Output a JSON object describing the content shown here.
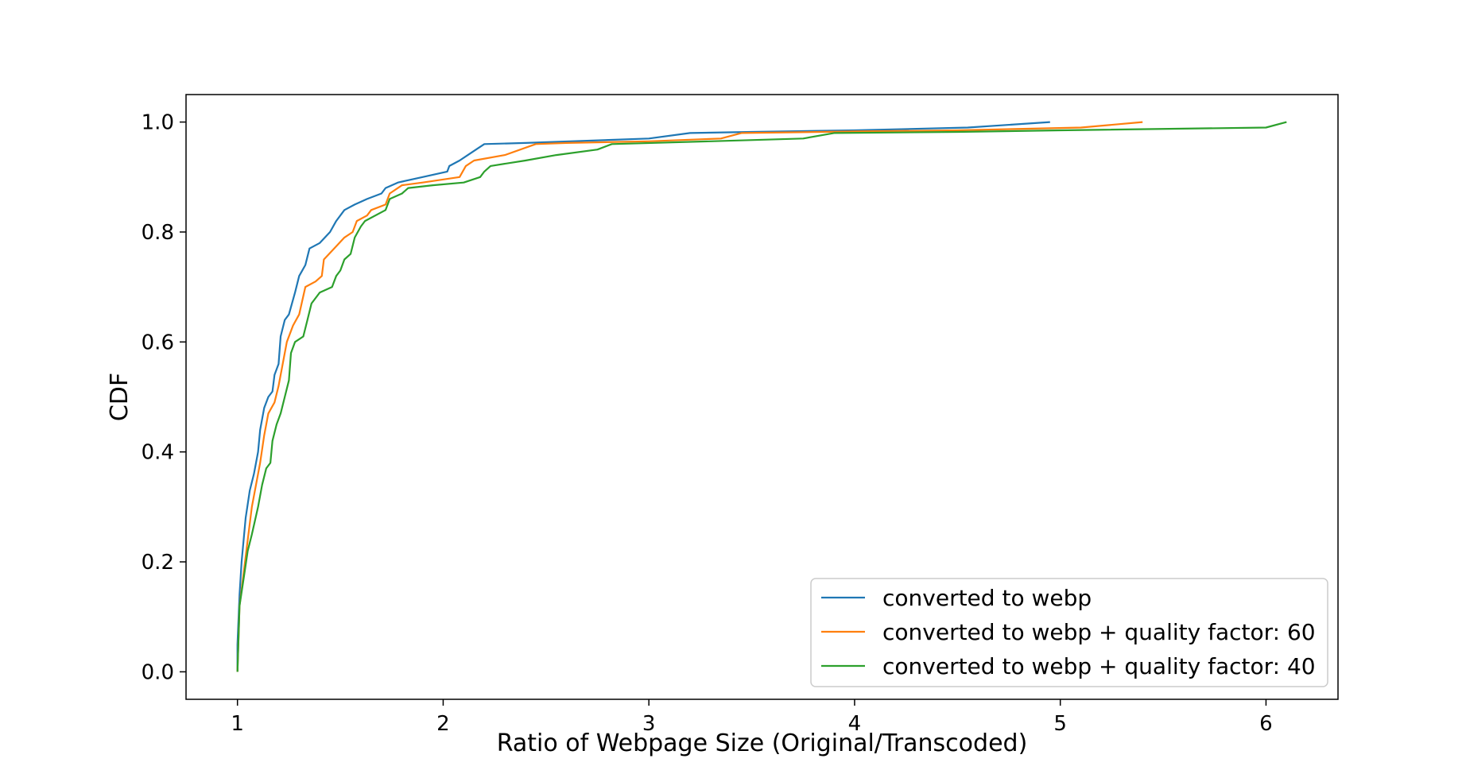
{
  "chart_data": {
    "type": "line",
    "title": "",
    "xlabel": "Ratio of Webpage Size (Original/Transcoded)",
    "ylabel": "CDF",
    "xlim": [
      0.75,
      6.35
    ],
    "ylim": [
      -0.05,
      1.05
    ],
    "x_ticks": [
      1,
      2,
      3,
      4,
      5,
      6
    ],
    "y_ticks": [
      0.0,
      0.2,
      0.4,
      0.6,
      0.8,
      1.0
    ],
    "x_tick_labels": [
      "1",
      "2",
      "3",
      "4",
      "5",
      "6"
    ],
    "y_tick_labels": [
      "0.0",
      "0.2",
      "0.4",
      "0.6",
      "0.8",
      "1.0"
    ],
    "grid": false,
    "legend_position": "bottom-right",
    "series": [
      {
        "name": "converted to webp",
        "color": "#1f77b4",
        "points": [
          [
            1.0,
            0.0
          ],
          [
            1.0,
            0.05
          ],
          [
            1.01,
            0.14
          ],
          [
            1.02,
            0.2
          ],
          [
            1.04,
            0.28
          ],
          [
            1.06,
            0.33
          ],
          [
            1.08,
            0.36
          ],
          [
            1.1,
            0.4
          ],
          [
            1.11,
            0.44
          ],
          [
            1.13,
            0.48
          ],
          [
            1.15,
            0.5
          ],
          [
            1.17,
            0.51
          ],
          [
            1.18,
            0.54
          ],
          [
            1.2,
            0.56
          ],
          [
            1.21,
            0.61
          ],
          [
            1.23,
            0.64
          ],
          [
            1.25,
            0.65
          ],
          [
            1.28,
            0.69
          ],
          [
            1.3,
            0.72
          ],
          [
            1.33,
            0.74
          ],
          [
            1.35,
            0.77
          ],
          [
            1.4,
            0.78
          ],
          [
            1.45,
            0.8
          ],
          [
            1.48,
            0.82
          ],
          [
            1.52,
            0.84
          ],
          [
            1.57,
            0.85
          ],
          [
            1.63,
            0.86
          ],
          [
            1.7,
            0.87
          ],
          [
            1.72,
            0.88
          ],
          [
            1.78,
            0.89
          ],
          [
            1.9,
            0.9
          ],
          [
            2.02,
            0.91
          ],
          [
            2.03,
            0.92
          ],
          [
            2.08,
            0.93
          ],
          [
            2.12,
            0.94
          ],
          [
            2.16,
            0.95
          ],
          [
            2.2,
            0.96
          ],
          [
            2.4,
            0.962
          ],
          [
            3.0,
            0.97
          ],
          [
            3.2,
            0.98
          ],
          [
            3.5,
            0.982
          ],
          [
            4.0,
            0.985
          ],
          [
            4.55,
            0.99
          ],
          [
            4.95,
            1.0
          ]
        ]
      },
      {
        "name": "converted to webp + quality factor: 60",
        "color": "#ff7f0e",
        "points": [
          [
            1.0,
            0.0
          ],
          [
            1.01,
            0.12
          ],
          [
            1.03,
            0.18
          ],
          [
            1.05,
            0.24
          ],
          [
            1.07,
            0.3
          ],
          [
            1.09,
            0.34
          ],
          [
            1.11,
            0.38
          ],
          [
            1.13,
            0.43
          ],
          [
            1.15,
            0.47
          ],
          [
            1.18,
            0.49
          ],
          [
            1.2,
            0.52
          ],
          [
            1.22,
            0.56
          ],
          [
            1.24,
            0.6
          ],
          [
            1.27,
            0.63
          ],
          [
            1.3,
            0.65
          ],
          [
            1.33,
            0.7
          ],
          [
            1.38,
            0.71
          ],
          [
            1.41,
            0.72
          ],
          [
            1.42,
            0.75
          ],
          [
            1.47,
            0.77
          ],
          [
            1.52,
            0.79
          ],
          [
            1.56,
            0.8
          ],
          [
            1.58,
            0.82
          ],
          [
            1.63,
            0.83
          ],
          [
            1.65,
            0.84
          ],
          [
            1.72,
            0.85
          ],
          [
            1.74,
            0.87
          ],
          [
            1.8,
            0.885
          ],
          [
            1.9,
            0.89
          ],
          [
            2.08,
            0.9
          ],
          [
            2.11,
            0.92
          ],
          [
            2.15,
            0.93
          ],
          [
            2.3,
            0.94
          ],
          [
            2.45,
            0.96
          ],
          [
            2.6,
            0.962
          ],
          [
            3.0,
            0.965
          ],
          [
            3.35,
            0.97
          ],
          [
            3.45,
            0.98
          ],
          [
            4.0,
            0.983
          ],
          [
            4.5,
            0.985
          ],
          [
            5.1,
            0.99
          ],
          [
            5.4,
            1.0
          ]
        ]
      },
      {
        "name": "converted to webp + quality factor: 40",
        "color": "#2ca02c",
        "points": [
          [
            1.0,
            0.0
          ],
          [
            1.01,
            0.12
          ],
          [
            1.03,
            0.17
          ],
          [
            1.05,
            0.22
          ],
          [
            1.07,
            0.25
          ],
          [
            1.1,
            0.3
          ],
          [
            1.12,
            0.34
          ],
          [
            1.14,
            0.37
          ],
          [
            1.16,
            0.38
          ],
          [
            1.17,
            0.42
          ],
          [
            1.19,
            0.45
          ],
          [
            1.21,
            0.47
          ],
          [
            1.23,
            0.5
          ],
          [
            1.25,
            0.53
          ],
          [
            1.26,
            0.58
          ],
          [
            1.28,
            0.6
          ],
          [
            1.32,
            0.61
          ],
          [
            1.34,
            0.64
          ],
          [
            1.36,
            0.67
          ],
          [
            1.4,
            0.69
          ],
          [
            1.46,
            0.7
          ],
          [
            1.48,
            0.72
          ],
          [
            1.5,
            0.73
          ],
          [
            1.52,
            0.75
          ],
          [
            1.55,
            0.76
          ],
          [
            1.57,
            0.79
          ],
          [
            1.6,
            0.81
          ],
          [
            1.62,
            0.82
          ],
          [
            1.72,
            0.84
          ],
          [
            1.74,
            0.86
          ],
          [
            1.8,
            0.87
          ],
          [
            1.83,
            0.88
          ],
          [
            1.95,
            0.885
          ],
          [
            2.1,
            0.89
          ],
          [
            2.18,
            0.9
          ],
          [
            2.2,
            0.91
          ],
          [
            2.23,
            0.92
          ],
          [
            2.4,
            0.93
          ],
          [
            2.55,
            0.94
          ],
          [
            2.75,
            0.95
          ],
          [
            2.82,
            0.96
          ],
          [
            3.3,
            0.965
          ],
          [
            3.75,
            0.97
          ],
          [
            3.9,
            0.98
          ],
          [
            4.5,
            0.982
          ],
          [
            5.0,
            0.985
          ],
          [
            6.0,
            0.99
          ],
          [
            6.1,
            1.0
          ]
        ]
      }
    ]
  }
}
